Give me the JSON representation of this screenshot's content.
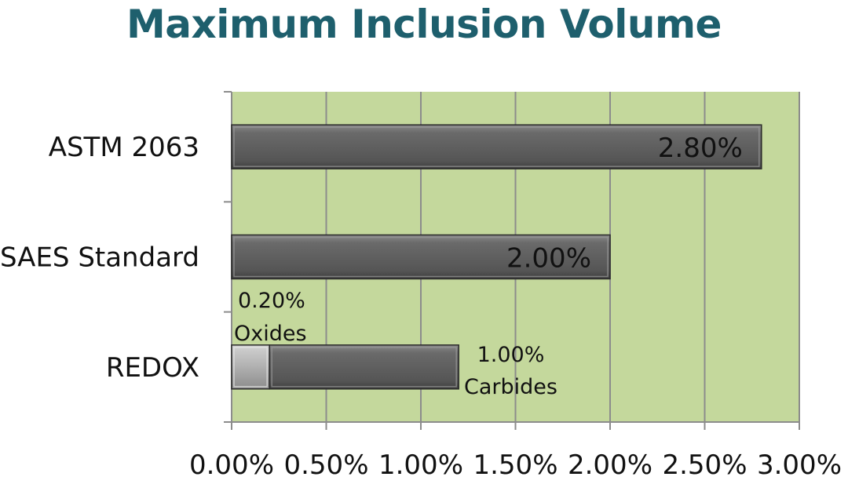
{
  "chart_data": {
    "type": "bar",
    "orientation": "horizontal",
    "stacked": true,
    "title": "Maximum Inclusion Volume",
    "categories": [
      "ASTM 2063",
      "SAES Standard",
      "REDOX"
    ],
    "series": [
      {
        "values": [
          2.8,
          2.0,
          0.2
        ],
        "color": "#5c5c5c"
      },
      {
        "values": [
          0,
          0,
          1.0
        ],
        "color": "#5c5c5c"
      }
    ],
    "redox_first_segment_color": "#a6a6a6",
    "data_labels": [
      "2.80%",
      "2.00%",
      "",
      ""
    ],
    "annotations": {
      "oxides_value": "0.20%",
      "oxides_label": "Oxides",
      "carbides_value": "1.00%",
      "carbides_label": "Carbides"
    },
    "xlim": [
      0,
      3.0
    ],
    "x_ticks": [
      "0.00%",
      "0.50%",
      "1.00%",
      "1.50%",
      "2.00%",
      "2.50%",
      "3.00%"
    ],
    "grid": true,
    "plot_background": "#c4d89c"
  }
}
